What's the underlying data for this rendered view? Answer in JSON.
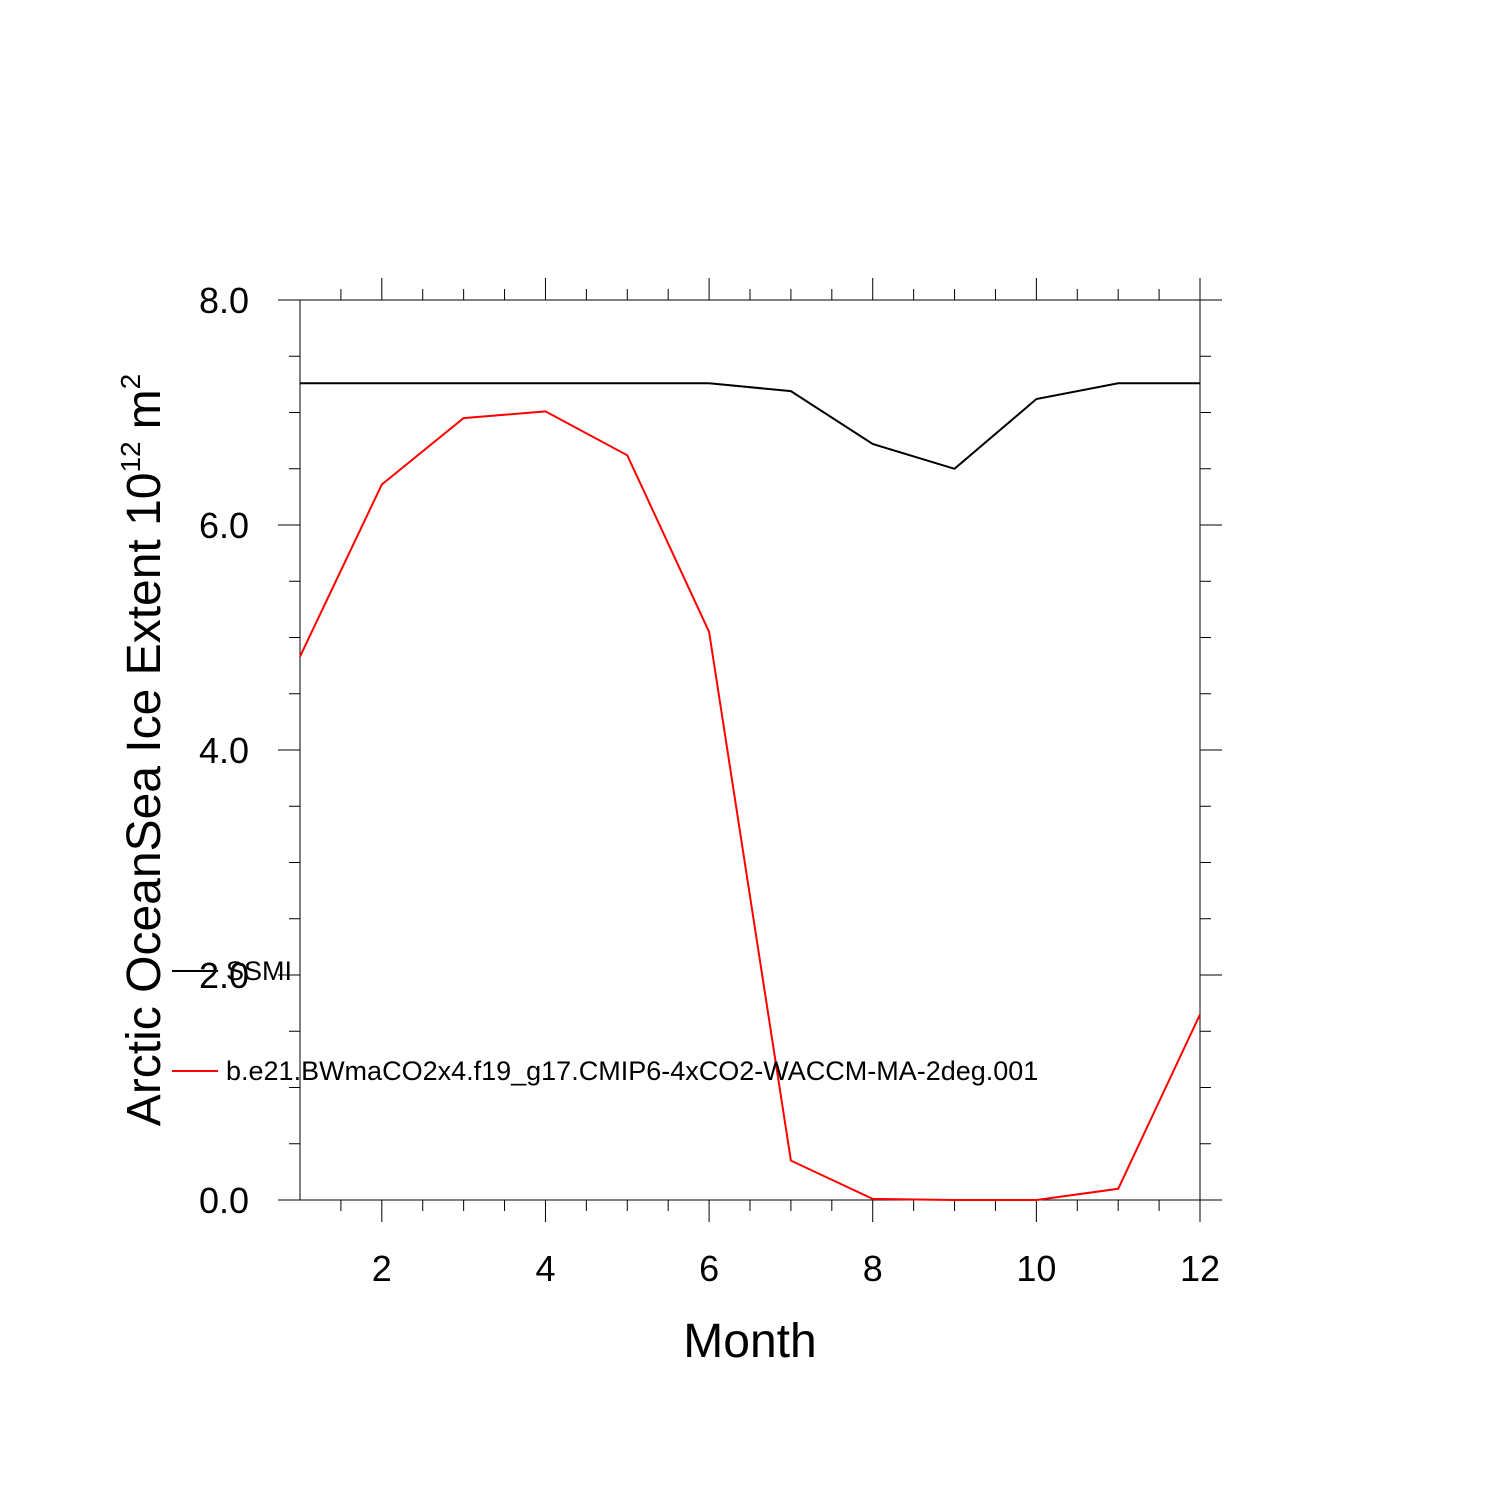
{
  "chart_data": {
    "type": "line",
    "title": "",
    "xlabel": "Month",
    "ylabel": "Arctic OceanSea Ice Extent 10",
    "ylabel_superscript": "12",
    "ylabel_unit": "m",
    "ylabel_unit_superscript": "2",
    "xlim": [
      1,
      12
    ],
    "ylim": [
      0,
      8
    ],
    "xticks": [
      2,
      4,
      6,
      8,
      10,
      12
    ],
    "xtick_labels": [
      "2",
      "4",
      "6",
      "8",
      "10",
      "12"
    ],
    "yticks": [
      0,
      2,
      4,
      6,
      8
    ],
    "ytick_labels": [
      "0.0",
      "2.0",
      "4.0",
      "6.0",
      "8.0"
    ],
    "grid": false,
    "legend_position": "lower-left",
    "x": [
      1,
      2,
      3,
      4,
      5,
      6,
      7,
      8,
      9,
      10,
      11,
      12
    ],
    "series": [
      {
        "name": "SSMI",
        "color": "#000000",
        "values": [
          7.26,
          7.26,
          7.26,
          7.26,
          7.26,
          7.26,
          7.19,
          6.72,
          6.5,
          7.12,
          7.26,
          7.26
        ]
      },
      {
        "name": "b.e21.BWmaCO2x4.f19_g17.CMIP6-4xCO2-WACCM-MA-2deg.001",
        "color": "#ff0000",
        "values": [
          4.83,
          6.36,
          6.95,
          7.01,
          6.62,
          5.05,
          0.35,
          0.01,
          0.0,
          0.0,
          0.1,
          1.65
        ]
      }
    ]
  }
}
